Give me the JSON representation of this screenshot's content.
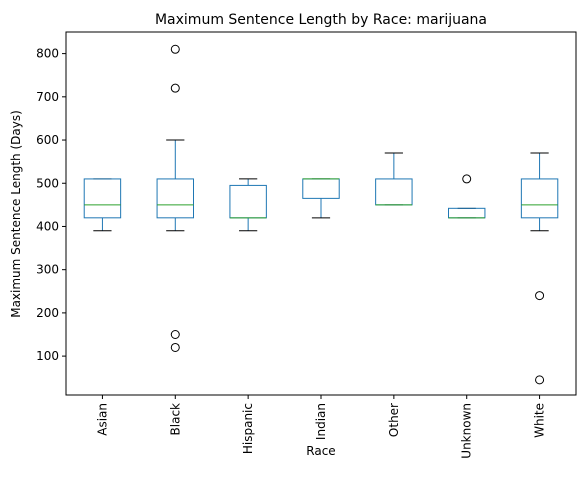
{
  "chart_data": {
    "type": "box",
    "title": "Maximum Sentence Length by Race: marijuana",
    "xlabel": "Race",
    "ylabel": "Maximum Sentence Length (Days)",
    "ylim": [
      10,
      850
    ],
    "yticks": [
      100,
      200,
      300,
      400,
      500,
      600,
      700,
      800
    ],
    "grid": false,
    "colors": {
      "box": "#1f77b4",
      "median": "#2ca02c",
      "flier": "#000000",
      "axis": "#000000"
    },
    "categories": [
      "Asian",
      "Black",
      "Hispanic",
      "Indian",
      "Other",
      "Unknown",
      "White"
    ],
    "boxes": [
      {
        "category": "Asian",
        "whisker_low": 390,
        "q1": 420,
        "median": 450,
        "q3": 510,
        "whisker_high": 510,
        "fliers": []
      },
      {
        "category": "Black",
        "whisker_low": 390,
        "q1": 420,
        "median": 450,
        "q3": 510,
        "whisker_high": 600,
        "fliers": [
          120,
          150,
          720,
          810
        ]
      },
      {
        "category": "Hispanic",
        "whisker_low": 390,
        "q1": 420,
        "median": 420,
        "q3": 495,
        "whisker_high": 510,
        "fliers": []
      },
      {
        "category": "Indian",
        "whisker_low": 420,
        "q1": 465,
        "median": 510,
        "q3": 510,
        "whisker_high": 510,
        "fliers": []
      },
      {
        "category": "Other",
        "whisker_low": 450,
        "q1": 450,
        "median": 450,
        "q3": 510,
        "whisker_high": 570,
        "fliers": []
      },
      {
        "category": "Unknown",
        "whisker_low": 420,
        "q1": 420,
        "median": 420,
        "q3": 442,
        "whisker_high": 442,
        "fliers": [
          510
        ]
      },
      {
        "category": "White",
        "whisker_low": 390,
        "q1": 420,
        "median": 450,
        "q3": 510,
        "whisker_high": 570,
        "fliers": [
          45,
          240
        ]
      }
    ]
  }
}
